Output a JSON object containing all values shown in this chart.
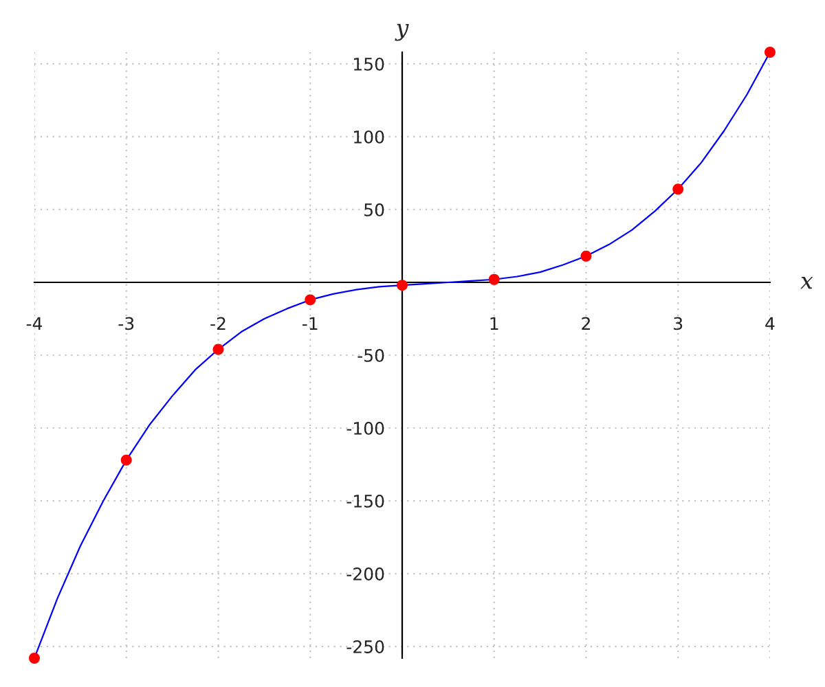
{
  "chart_data": {
    "type": "line",
    "xlabel": "x",
    "ylabel": "y",
    "x": [
      -4,
      -3,
      -2,
      -1,
      0,
      1,
      2,
      3,
      4
    ],
    "series": [
      {
        "color": "#0000ff",
        "x": [
          -4,
          -3.75,
          -3.5,
          -3.25,
          -3,
          -2.75,
          -2.5,
          -2.25,
          -2,
          -1.75,
          -1.5,
          -1.25,
          -1,
          -0.75,
          -0.5,
          -0.25,
          0,
          0.25,
          0.5,
          0.75,
          1,
          1.25,
          1.5,
          1.75,
          2,
          2.25,
          2.5,
          2.75,
          3,
          3.25,
          3.5,
          3.75,
          4
        ],
        "values": [
          -258,
          -217,
          -181,
          -150,
          -122,
          -98,
          -78,
          -60,
          -46,
          -34,
          -25,
          -18,
          -12,
          -8,
          -5,
          -3,
          -2,
          -1,
          0,
          1,
          2,
          4,
          7,
          12,
          18,
          26,
          36,
          49,
          64,
          82,
          104,
          129,
          158
        ]
      },
      {
        "type": "scatter",
        "color": "#ff0000",
        "marker": "circle",
        "values": [
          -258,
          -122,
          -46,
          -12,
          -2,
          2,
          18,
          64,
          158
        ]
      }
    ],
    "line_style": "solid",
    "xlim": [
      -4,
      4
    ],
    "ylim": [
      -258,
      158
    ],
    "xticks": [
      -4,
      -3,
      -2,
      -1,
      1,
      2,
      3,
      4
    ],
    "yticks": [
      -250,
      -200,
      -150,
      -100,
      -50,
      50,
      100,
      150
    ],
    "grid": true
  }
}
